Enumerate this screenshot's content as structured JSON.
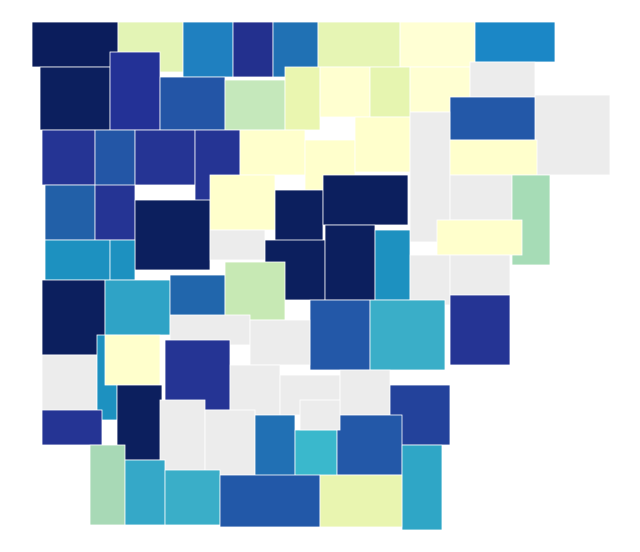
{
  "map": {
    "regions": [
      {
        "color": "#0b1d5c"
      },
      {
        "color": "#e3f4b5"
      },
      {
        "color": "#1f80c0"
      },
      {
        "color": "#23308e"
      },
      {
        "color": "#2071b4"
      },
      {
        "color": "#e6f5b4"
      },
      {
        "color": "#ffffd4"
      },
      {
        "color": "#1b87c6"
      },
      {
        "color": "#0c1f5e"
      },
      {
        "color": "#233196"
      },
      {
        "color": "#2355a6"
      },
      {
        "color": "#c5e8bb"
      },
      {
        "color": "#eaf6b0"
      },
      {
        "color": "#ffffd0"
      },
      {
        "color": "#e6f5b0"
      },
      {
        "color": "#ffffd2"
      },
      {
        "color": "#ececec"
      },
      {
        "color": "#ececec"
      },
      {
        "color": "#2358a8"
      },
      {
        "color": "#253494"
      },
      {
        "color": "#2356a6"
      },
      {
        "color": "#253494"
      },
      {
        "color": "#253494"
      },
      {
        "color": "#ffffcc"
      },
      {
        "color": "#ffffcc"
      },
      {
        "color": "#ffffcc"
      },
      {
        "color": "#ececec"
      },
      {
        "color": "#ffffcc"
      },
      {
        "color": "#ececec"
      },
      {
        "color": "#a6dcb6"
      },
      {
        "color": "#2260a8"
      },
      {
        "color": "#253494"
      },
      {
        "color": "#0c1f5e"
      },
      {
        "color": "#ffffcc"
      },
      {
        "color": "#0c1f5e"
      },
      {
        "color": "#0c1f5e"
      },
      {
        "color": "#1d91c0"
      },
      {
        "color": "#1d91c0"
      },
      {
        "color": "#ececec"
      },
      {
        "color": "#0c1f5e"
      },
      {
        "color": "#0c1f5e"
      },
      {
        "color": "#1d91c0"
      },
      {
        "color": "#ffffcc"
      },
      {
        "color": "#ececec"
      },
      {
        "color": "#ececec"
      },
      {
        "color": "#0c1f5e"
      },
      {
        "color": "#2fa3c6"
      },
      {
        "color": "#2166ac"
      },
      {
        "color": "#c7e9b4"
      },
      {
        "color": "#253494"
      },
      {
        "color": "#2358a8"
      },
      {
        "color": "#3aaec8"
      },
      {
        "color": "#ececec"
      },
      {
        "color": "#1d91c0"
      },
      {
        "color": "#ffffcc"
      },
      {
        "color": "#ececec"
      },
      {
        "color": "#253494"
      },
      {
        "color": "#ececec"
      },
      {
        "color": "#ececec"
      },
      {
        "color": "#ececec"
      },
      {
        "color": "#ececec"
      },
      {
        "color": "#23429b"
      },
      {
        "color": "#0c1f5e"
      },
      {
        "color": "#253494"
      },
      {
        "color": "#ececec"
      },
      {
        "color": "#ececec"
      },
      {
        "color": "#2170b4"
      },
      {
        "color": "#3ab8cc"
      },
      {
        "color": "#2358a8"
      },
      {
        "color": "#2fa6c6"
      },
      {
        "color": "#a8d9b6"
      },
      {
        "color": "#35a8c8"
      },
      {
        "color": "#3aaec8"
      },
      {
        "color": "#2258a8"
      },
      {
        "color": "#e9f5b0"
      },
      {
        "color": "#ececec"
      }
    ]
  }
}
